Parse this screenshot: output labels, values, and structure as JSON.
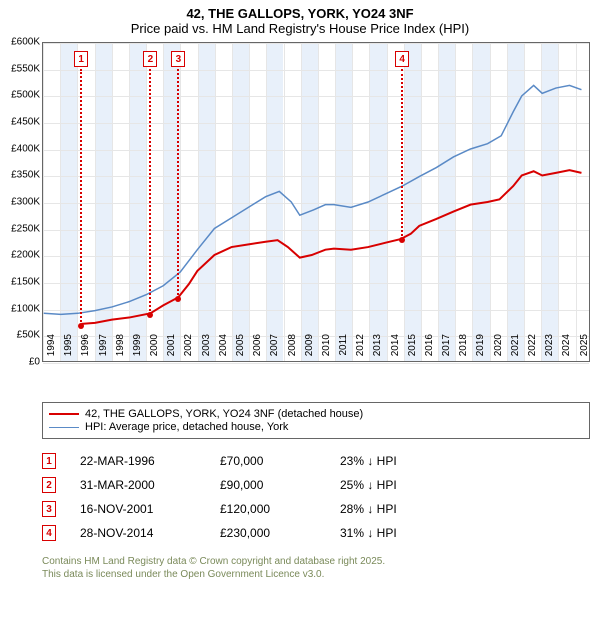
{
  "title": {
    "line1": "42, THE GALLOPS, YORK, YO24 3NF",
    "line2": "Price paid vs. HM Land Registry's House Price Index (HPI)"
  },
  "chart": {
    "type": "line",
    "background_color": "#ffffff",
    "grid_color": "#e6e6e6",
    "band_color": "#e8f0fa",
    "border_color": "#666666",
    "x": {
      "min": 1994,
      "max": 2025.9,
      "ticks": [
        1994,
        1995,
        1996,
        1997,
        1998,
        1999,
        2000,
        2001,
        2002,
        2003,
        2004,
        2005,
        2006,
        2007,
        2008,
        2009,
        2010,
        2011,
        2012,
        2013,
        2014,
        2015,
        2016,
        2017,
        2018,
        2019,
        2020,
        2021,
        2022,
        2023,
        2024,
        2025
      ]
    },
    "y": {
      "min": 0,
      "max": 600000,
      "ticks": [
        0,
        50000,
        100000,
        150000,
        200000,
        250000,
        300000,
        350000,
        400000,
        450000,
        500000,
        550000,
        600000
      ],
      "tick_labels": [
        "£0",
        "£50K",
        "£100K",
        "£150K",
        "£200K",
        "£250K",
        "£300K",
        "£350K",
        "£400K",
        "£450K",
        "£500K",
        "£550K",
        "£600K"
      ]
    },
    "series": [
      {
        "name": "42, THE GALLOPS, YORK, YO24 3NF (detached house)",
        "color": "#d80000",
        "line_width": 2,
        "points": [
          [
            1996.22,
            70000
          ],
          [
            1997,
            72000
          ],
          [
            1998,
            78000
          ],
          [
            1999,
            82000
          ],
          [
            2000.25,
            90000
          ],
          [
            2001,
            105000
          ],
          [
            2001.88,
            120000
          ],
          [
            2002.5,
            145000
          ],
          [
            2003,
            170000
          ],
          [
            2004,
            200000
          ],
          [
            2005,
            215000
          ],
          [
            2006,
            220000
          ],
          [
            2007,
            225000
          ],
          [
            2007.7,
            228000
          ],
          [
            2008.3,
            215000
          ],
          [
            2009,
            195000
          ],
          [
            2009.7,
            200000
          ],
          [
            2010.5,
            210000
          ],
          [
            2011,
            212000
          ],
          [
            2012,
            210000
          ],
          [
            2013,
            215000
          ],
          [
            2014,
            223000
          ],
          [
            2014.91,
            230000
          ],
          [
            2015.5,
            240000
          ],
          [
            2016,
            255000
          ],
          [
            2017,
            268000
          ],
          [
            2018,
            282000
          ],
          [
            2019,
            295000
          ],
          [
            2020,
            300000
          ],
          [
            2020.7,
            305000
          ],
          [
            2021.5,
            330000
          ],
          [
            2022,
            350000
          ],
          [
            2022.7,
            358000
          ],
          [
            2023.2,
            350000
          ],
          [
            2024,
            355000
          ],
          [
            2024.8,
            360000
          ],
          [
            2025.5,
            355000
          ]
        ]
      },
      {
        "name": "HPI: Average price, detached house, York",
        "color": "#5a8ac6",
        "line_width": 1.5,
        "points": [
          [
            1994,
            90000
          ],
          [
            1995,
            88000
          ],
          [
            1996,
            90000
          ],
          [
            1997,
            95000
          ],
          [
            1998,
            102000
          ],
          [
            1999,
            112000
          ],
          [
            2000,
            125000
          ],
          [
            2001,
            142000
          ],
          [
            2002,
            168000
          ],
          [
            2003,
            210000
          ],
          [
            2004,
            250000
          ],
          [
            2005,
            270000
          ],
          [
            2006,
            290000
          ],
          [
            2007,
            310000
          ],
          [
            2007.8,
            320000
          ],
          [
            2008.5,
            300000
          ],
          [
            2009,
            275000
          ],
          [
            2009.8,
            285000
          ],
          [
            2010.5,
            295000
          ],
          [
            2011,
            295000
          ],
          [
            2012,
            290000
          ],
          [
            2013,
            300000
          ],
          [
            2014,
            315000
          ],
          [
            2015,
            330000
          ],
          [
            2016,
            348000
          ],
          [
            2017,
            365000
          ],
          [
            2018,
            385000
          ],
          [
            2019,
            400000
          ],
          [
            2020,
            410000
          ],
          [
            2020.8,
            425000
          ],
          [
            2021.5,
            470000
          ],
          [
            2022,
            500000
          ],
          [
            2022.7,
            520000
          ],
          [
            2023.2,
            505000
          ],
          [
            2024,
            515000
          ],
          [
            2024.8,
            520000
          ],
          [
            2025.5,
            512000
          ]
        ]
      }
    ],
    "sale_markers": [
      {
        "n": "1",
        "year": 1996.22,
        "price": 70000
      },
      {
        "n": "2",
        "year": 2000.25,
        "price": 90000
      },
      {
        "n": "3",
        "year": 2001.88,
        "price": 120000
      },
      {
        "n": "4",
        "year": 2014.91,
        "price": 230000
      }
    ]
  },
  "legend": {
    "items": [
      {
        "label": "42, THE GALLOPS, YORK, YO24 3NF (detached house)",
        "swatch": "red"
      },
      {
        "label": "HPI: Average price, detached house, York",
        "swatch": "blue"
      }
    ]
  },
  "sales": [
    {
      "n": "1",
      "date": "22-MAR-1996",
      "price": "£70,000",
      "delta": "23% ↓ HPI"
    },
    {
      "n": "2",
      "date": "31-MAR-2000",
      "price": "£90,000",
      "delta": "25% ↓ HPI"
    },
    {
      "n": "3",
      "date": "16-NOV-2001",
      "price": "£120,000",
      "delta": "28% ↓ HPI"
    },
    {
      "n": "4",
      "date": "28-NOV-2014",
      "price": "£230,000",
      "delta": "31% ↓ HPI"
    }
  ],
  "footnote": {
    "line1": "Contains HM Land Registry data © Crown copyright and database right 2025.",
    "line2": "This data is licensed under the Open Government Licence v3.0."
  }
}
